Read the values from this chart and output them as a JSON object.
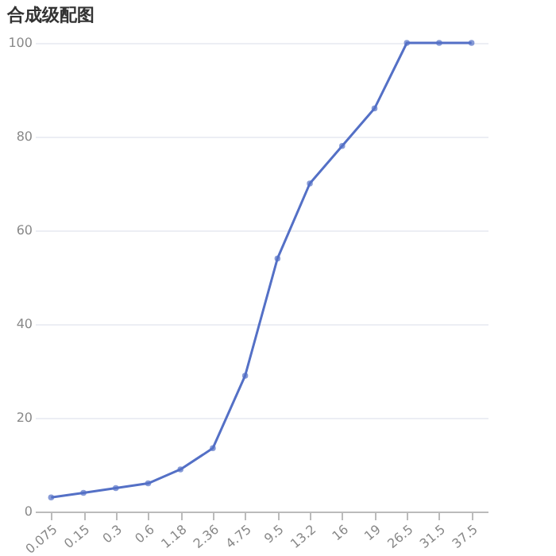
{
  "chart_data": {
    "type": "line",
    "title": "合成级配图",
    "categories": [
      "0.075",
      "0.15",
      "0.3",
      "0.6",
      "1.18",
      "2.36",
      "4.75",
      "9.5",
      "13.2",
      "16",
      "19",
      "26.5",
      "31.5",
      "37.5"
    ],
    "series": [
      {
        "color": "#5470c6",
        "values": [
          3,
          4,
          5,
          6,
          9,
          13.5,
          29,
          54,
          70,
          78,
          86,
          100,
          100,
          100
        ]
      }
    ],
    "ylim": [
      0,
      100
    ],
    "yticks": [
      0,
      20,
      40,
      60,
      80,
      100
    ],
    "grid": "y",
    "marker": "circle",
    "line_style": "solid"
  }
}
